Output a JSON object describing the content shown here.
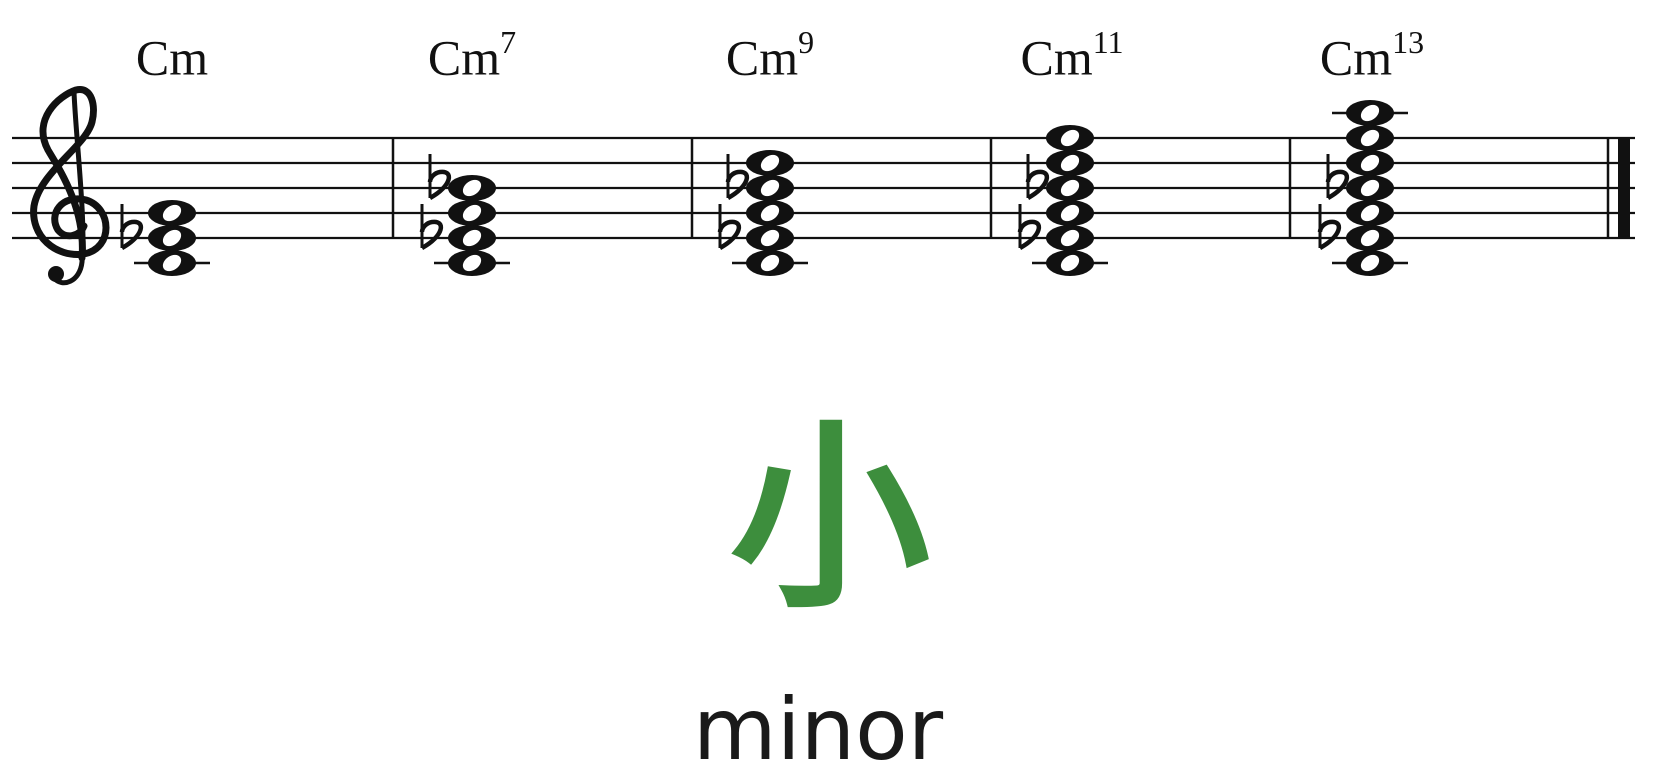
{
  "chords": [
    {
      "root": "Cm",
      "ext": ""
    },
    {
      "root": "Cm",
      "ext": "7"
    },
    {
      "root": "Cm",
      "ext": "9"
    },
    {
      "root": "Cm",
      "ext": "11"
    },
    {
      "root": "Cm",
      "ext": "13"
    }
  ],
  "chord_notes": [
    [
      "C4",
      "Eb4",
      "G4"
    ],
    [
      "C4",
      "Eb4",
      "G4",
      "Bb4"
    ],
    [
      "C4",
      "Eb4",
      "G4",
      "Bb4",
      "D5"
    ],
    [
      "C4",
      "Eb4",
      "G4",
      "Bb4",
      "D5",
      "F5"
    ],
    [
      "C4",
      "Eb4",
      "G4",
      "Bb4",
      "D5",
      "F5",
      "A5"
    ]
  ],
  "caption": {
    "hanzi": "小",
    "english": "minor"
  },
  "colors": {
    "accent": "#3d8e3d",
    "ink": "#111111"
  }
}
